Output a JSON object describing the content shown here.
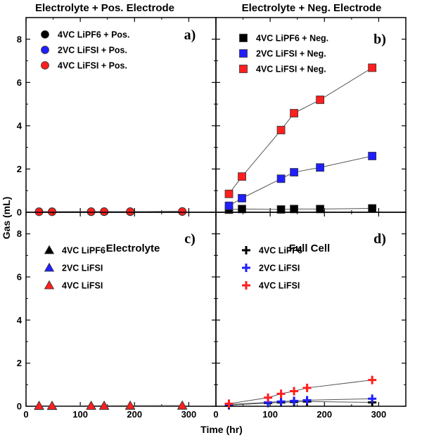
{
  "figure": {
    "xlabel": "Time (hr)",
    "ylabel": "Gas (mL)"
  },
  "chart_data": [
    {
      "type": "line",
      "panel": "a)",
      "title": "Electrolyte + Pos. Electrode",
      "xlim": [
        0,
        350
      ],
      "ylim": [
        0,
        9
      ],
      "xticks": [
        0,
        100,
        200,
        300
      ],
      "yticks": [
        0,
        2,
        4,
        6,
        8
      ],
      "marker": "circle",
      "series": [
        {
          "name": "4VC LiPF6 + Pos.",
          "color": "#000000",
          "x": [
            24,
            48,
            120,
            144,
            192,
            288
          ],
          "y": [
            0.03,
            0.03,
            0.03,
            0.03,
            0.03,
            0.04
          ]
        },
        {
          "name": "2VC LiFSI + Pos.",
          "color": "#1f1fff",
          "x": [
            24,
            48,
            120,
            144,
            192,
            288
          ],
          "y": [
            0.02,
            0.02,
            0.02,
            0.02,
            0.02,
            0.03
          ]
        },
        {
          "name": "4VC LiFSI + Pos.",
          "color": "#ff1f1f",
          "x": [
            24,
            48,
            120,
            144,
            192,
            288
          ],
          "y": [
            0.02,
            0.02,
            0.03,
            0.03,
            0.03,
            0.04
          ]
        }
      ]
    },
    {
      "type": "line",
      "panel": "b)",
      "title": "Electrolyte + Neg. Electrode",
      "xlim": [
        0,
        350
      ],
      "ylim": [
        0,
        9
      ],
      "xticks": [
        0,
        100,
        200,
        300
      ],
      "yticks": [
        0,
        2,
        4,
        6,
        8
      ],
      "marker": "square",
      "series": [
        {
          "name": "4VC LiPF6 + Neg.",
          "color": "#000000",
          "x": [
            24,
            48,
            120,
            144,
            192,
            288
          ],
          "y": [
            0.12,
            0.15,
            0.13,
            0.15,
            0.15,
            0.18
          ]
        },
        {
          "name": "2VC LiFSI + Neg.",
          "color": "#1f1fff",
          "x": [
            24,
            48,
            120,
            144,
            192,
            288
          ],
          "y": [
            0.3,
            0.65,
            1.55,
            1.85,
            2.07,
            2.6
          ]
        },
        {
          "name": "4VC LiFSI + Neg.",
          "color": "#ff1f1f",
          "x": [
            24,
            48,
            120,
            144,
            192,
            288
          ],
          "y": [
            0.85,
            1.65,
            3.8,
            4.58,
            5.2,
            6.68
          ]
        }
      ]
    },
    {
      "type": "line",
      "panel": "c)",
      "title": "Electrolyte",
      "xlim": [
        0,
        350
      ],
      "ylim": [
        0,
        9
      ],
      "xticks": [
        0,
        100,
        200,
        300
      ],
      "yticks": [
        0,
        2,
        4,
        6,
        8
      ],
      "marker": "triangle",
      "series": [
        {
          "name": "4VC LiPF6",
          "color": "#000000",
          "x": [
            24,
            48,
            120,
            144,
            192,
            288
          ],
          "y": [
            0.02,
            0.02,
            0.02,
            0.02,
            0.02,
            0.03
          ]
        },
        {
          "name": "2VC LiFSI",
          "color": "#1f1fff",
          "x": [
            24,
            48,
            120,
            144,
            192,
            288
          ],
          "y": [
            0.01,
            0.01,
            0.02,
            0.02,
            0.02,
            0.02
          ]
        },
        {
          "name": "4VC LiFSI",
          "color": "#ff1f1f",
          "x": [
            24,
            48,
            120,
            144,
            192,
            288
          ],
          "y": [
            0.02,
            0.02,
            0.02,
            0.02,
            0.03,
            0.03
          ]
        }
      ]
    },
    {
      "type": "line",
      "panel": "d)",
      "title": "Full Cell",
      "xlim": [
        0,
        350
      ],
      "ylim": [
        0,
        9
      ],
      "xticks": [
        0,
        100,
        200,
        300
      ],
      "yticks": [
        0,
        2,
        4,
        6,
        8
      ],
      "marker": "cross",
      "series": [
        {
          "name": "4VC LiPF6",
          "color": "#000000",
          "x": [
            24,
            96,
            120,
            144,
            168,
            288
          ],
          "y": [
            0.05,
            0.15,
            0.18,
            0.2,
            0.22,
            0.18
          ]
        },
        {
          "name": "2VC LiFSI",
          "color": "#1f1fff",
          "x": [
            24,
            96,
            120,
            144,
            168,
            288
          ],
          "y": [
            0.08,
            0.18,
            0.22,
            0.25,
            0.28,
            0.35
          ]
        },
        {
          "name": "4VC LiFSI",
          "color": "#ff1f1f",
          "x": [
            24,
            96,
            120,
            144,
            168,
            288
          ],
          "y": [
            0.12,
            0.4,
            0.58,
            0.7,
            0.85,
            1.22
          ]
        }
      ]
    }
  ]
}
